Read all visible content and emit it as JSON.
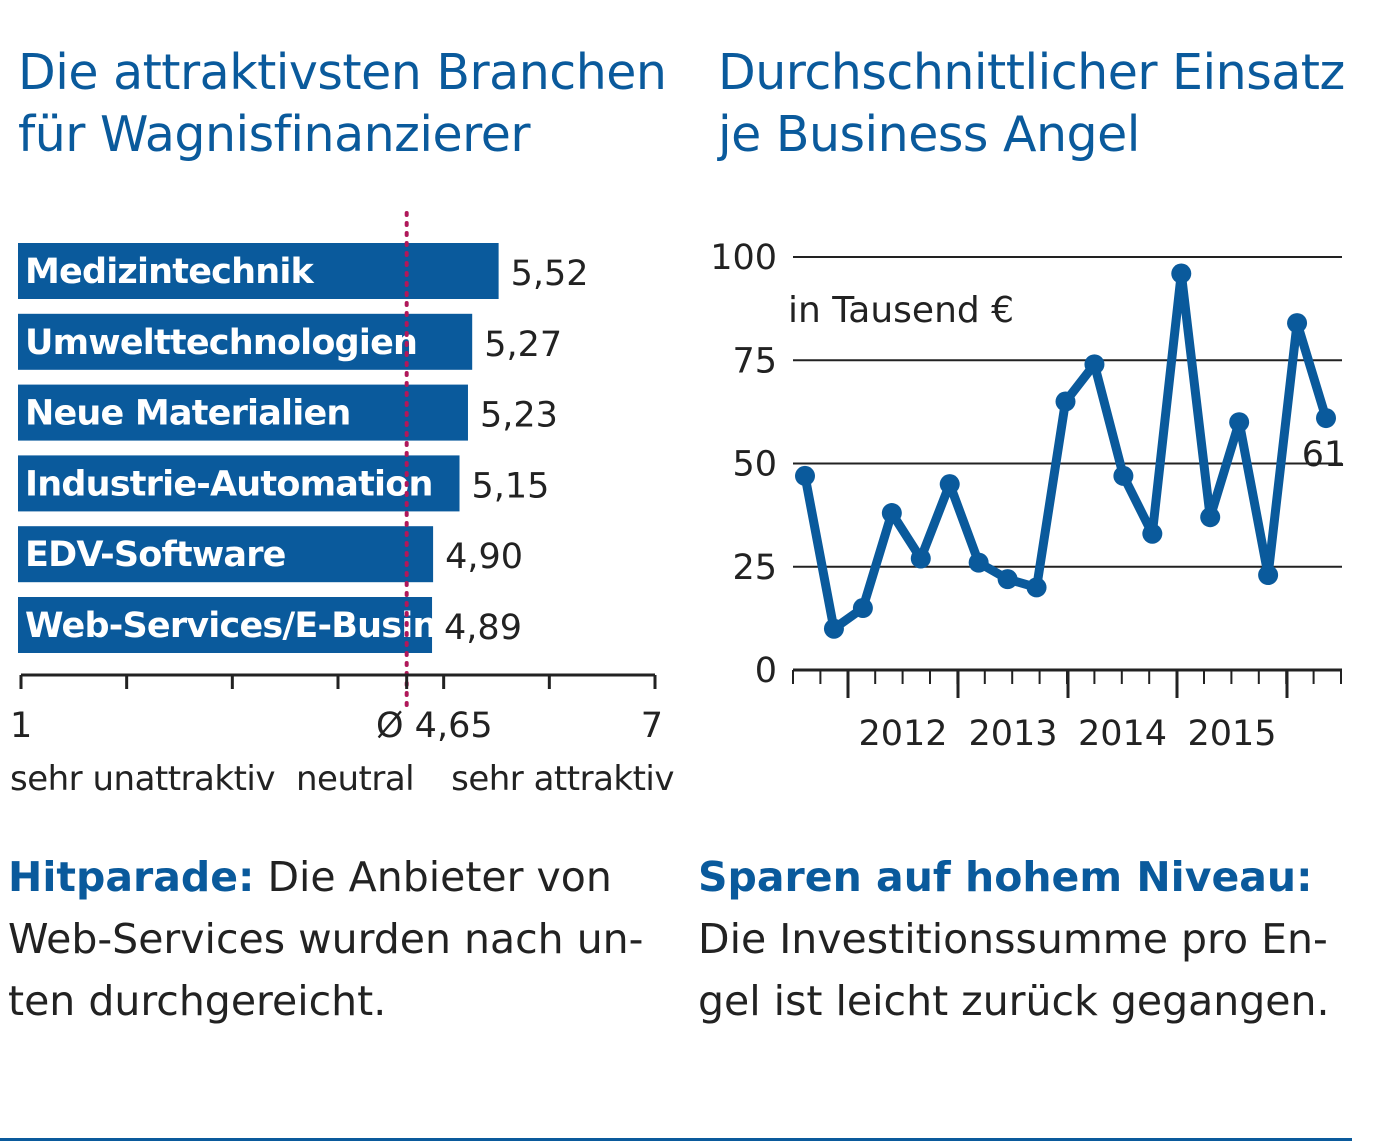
{
  "left": {
    "title_line1": "Die attraktivsten Branchen",
    "title_line2": "für Wagnisfinanzierer",
    "caption_lead": "Hitparade:",
    "caption_text": " Die Anbieter von Web-Services wurden nach un-ten durchgereicht.",
    "caption_line1_rest": " Die Anbieter von",
    "caption_line2": "Web-Services wurden nach un-",
    "caption_line3": "ten durchgereicht."
  },
  "right": {
    "title_line1": "Durchschnittlicher Einsatz",
    "title_line2": "je Business Angel",
    "caption_lead": "Sparen auf hohem Niveau:",
    "caption_line2": "Die Investitionssumme pro En-",
    "caption_line3": "gel ist leicht zurück gegangen."
  },
  "chart_data": [
    {
      "type": "bar",
      "orientation": "horizontal",
      "categories": [
        "Medizintechnik",
        "Umwelttechnologien",
        "Neue Materialien",
        "Industrie-Automation",
        "EDV-Software",
        "Web-Services/E-Business"
      ],
      "values": [
        5.52,
        5.27,
        5.23,
        5.15,
        4.9,
        4.89
      ],
      "value_labels": [
        "5,52",
        "5,27",
        "5,23",
        "5,15",
        "4,90",
        "4,89"
      ],
      "xlim": [
        1,
        7
      ],
      "x_tick_labels": [
        {
          "value": 1,
          "label": "1"
        },
        {
          "value": 4.65,
          "label": "Ø 4,65"
        },
        {
          "value": 7,
          "label": "7"
        }
      ],
      "reference_line": {
        "value": 4.65,
        "label": "Ø 4,65",
        "style": "dotted",
        "color": "#b0185a"
      },
      "scale_labels": [
        "sehr unattraktiv",
        "neutral",
        "sehr attraktiv"
      ],
      "bar_color": "#0a5a9c",
      "grid": false
    },
    {
      "type": "line",
      "unit_label": "in Tausend €",
      "ylim": [
        0,
        100
      ],
      "y_ticks": [
        0,
        25,
        50,
        75,
        100
      ],
      "x_tick_labels": [
        "2012",
        "2013",
        "2014",
        "2015"
      ],
      "points_per_year": 4,
      "series": [
        {
          "values": [
            47,
            10,
            15,
            38,
            27,
            45,
            26,
            22,
            20,
            65,
            74,
            47,
            33,
            96,
            37,
            60,
            23,
            84,
            61
          ]
        }
      ],
      "end_label": "61",
      "line_color": "#0a5a9c",
      "grid": true,
      "legend": "none"
    }
  ]
}
